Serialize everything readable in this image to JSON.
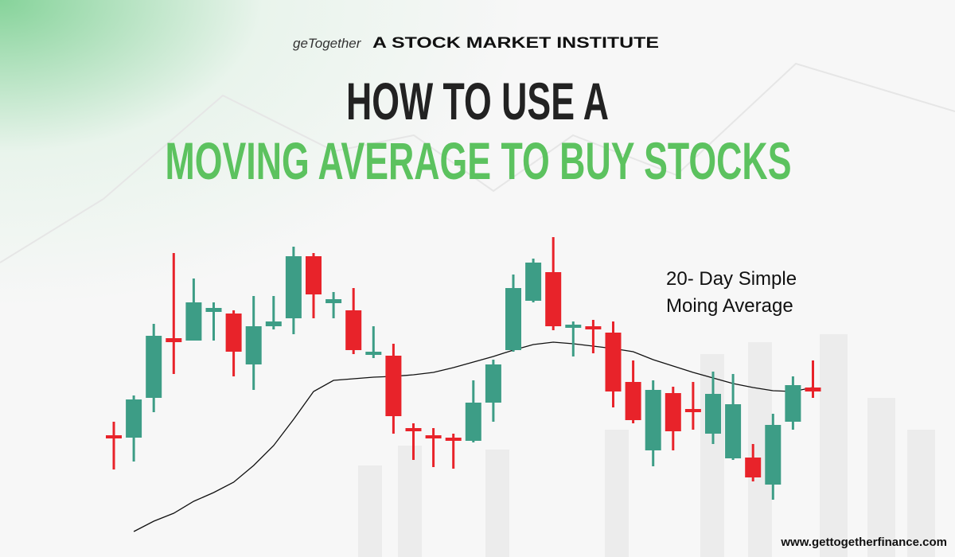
{
  "brand": {
    "logo": "geTogether",
    "institute": "A STOCK MARKET INSTITUTE"
  },
  "heading": {
    "line1": "HOW TO USE A",
    "line2": "MOVING AVERAGE TO BUY STOCKS"
  },
  "footer": {
    "url": "www.gettogetherfinance.com"
  },
  "chart_data": {
    "type": "candlestick",
    "annotation": [
      "20- Day Simple",
      "Moing Average"
    ],
    "ylim": [
      0,
      45
    ],
    "up_color": "#3d9d86",
    "down_color": "#e8232a",
    "candles": [
      {
        "open": 14.3,
        "close": 13.9,
        "high": 16.0,
        "low": 10.0
      },
      {
        "open": 14.0,
        "close": 18.8,
        "high": 19.3,
        "low": 11.0
      },
      {
        "open": 19.0,
        "close": 26.8,
        "high": 28.3,
        "low": 17.2
      },
      {
        "open": 26.5,
        "close": 26.0,
        "high": 37.2,
        "low": 22.0
      },
      {
        "open": 26.2,
        "close": 31.0,
        "high": 34.0,
        "low": 26.2
      },
      {
        "open": 29.8,
        "close": 30.3,
        "high": 31.0,
        "low": 26.2
      },
      {
        "open": 29.6,
        "close": 24.8,
        "high": 30.0,
        "low": 21.7
      },
      {
        "open": 23.2,
        "close": 28.0,
        "high": 31.8,
        "low": 20.0
      },
      {
        "open": 28.0,
        "close": 28.6,
        "high": 31.8,
        "low": 27.6
      },
      {
        "open": 29.0,
        "close": 36.8,
        "high": 38.0,
        "low": 27.0
      },
      {
        "open": 36.8,
        "close": 32.0,
        "high": 37.2,
        "low": 29.0
      },
      {
        "open": 30.9,
        "close": 31.4,
        "high": 32.3,
        "low": 29.0
      },
      {
        "open": 30.0,
        "close": 25.0,
        "high": 32.8,
        "low": 24.5
      },
      {
        "open": 24.4,
        "close": 24.8,
        "high": 28.0,
        "low": 24.0
      },
      {
        "open": 24.3,
        "close": 16.7,
        "high": 25.8,
        "low": 14.5
      },
      {
        "open": 15.2,
        "close": 14.8,
        "high": 15.8,
        "low": 11.2
      },
      {
        "open": 14.3,
        "close": 13.9,
        "high": 15.2,
        "low": 10.3
      },
      {
        "open": 14.0,
        "close": 13.6,
        "high": 14.5,
        "low": 10.1
      },
      {
        "open": 13.6,
        "close": 18.4,
        "high": 21.2,
        "low": 13.4
      },
      {
        "open": 18.4,
        "close": 23.2,
        "high": 23.8,
        "low": 16.0
      },
      {
        "open": 25.0,
        "close": 32.8,
        "high": 34.5,
        "low": 24.8
      },
      {
        "open": 31.2,
        "close": 36.0,
        "high": 36.5,
        "low": 31.0
      },
      {
        "open": 34.8,
        "close": 28.0,
        "high": 39.2,
        "low": 27.5
      },
      {
        "open": 27.8,
        "close": 28.2,
        "high": 28.6,
        "low": 24.2
      },
      {
        "open": 28.0,
        "close": 27.6,
        "high": 28.8,
        "low": 24.6
      },
      {
        "open": 27.2,
        "close": 19.8,
        "high": 28.6,
        "low": 17.8
      },
      {
        "open": 21.0,
        "close": 16.2,
        "high": 23.7,
        "low": 15.8
      },
      {
        "open": 12.4,
        "close": 20.0,
        "high": 21.2,
        "low": 10.4
      },
      {
        "open": 19.6,
        "close": 14.8,
        "high": 20.4,
        "low": 12.4
      },
      {
        "open": 17.6,
        "close": 17.2,
        "high": 21.0,
        "low": 15.0
      },
      {
        "open": 14.5,
        "close": 19.5,
        "high": 22.3,
        "low": 13.2
      },
      {
        "open": 11.4,
        "close": 18.2,
        "high": 22.0,
        "low": 11.2
      },
      {
        "open": 11.5,
        "close": 9.0,
        "high": 13.2,
        "low": 8.5
      },
      {
        "open": 8.1,
        "close": 15.6,
        "high": 17.0,
        "low": 6.2
      },
      {
        "open": 16.0,
        "close": 20.6,
        "high": 21.7,
        "low": 15.0
      },
      {
        "open": 20.3,
        "close": 19.8,
        "high": 23.7,
        "low": 19.0
      }
    ],
    "moving_average": {
      "color": "#111111",
      "values": [
        null,
        2.2,
        3.5,
        4.5,
        6.0,
        7.1,
        8.4,
        10.5,
        13.0,
        16.3,
        19.8,
        21.2,
        21.4,
        21.6,
        21.7,
        21.9,
        22.2,
        22.8,
        23.5,
        24.2,
        25.0,
        25.7,
        26.0,
        25.8,
        25.5,
        25.2,
        24.8,
        23.8,
        23.0,
        22.2,
        21.5,
        20.8,
        20.3,
        19.9,
        19.8,
        20.3
      ]
    }
  }
}
